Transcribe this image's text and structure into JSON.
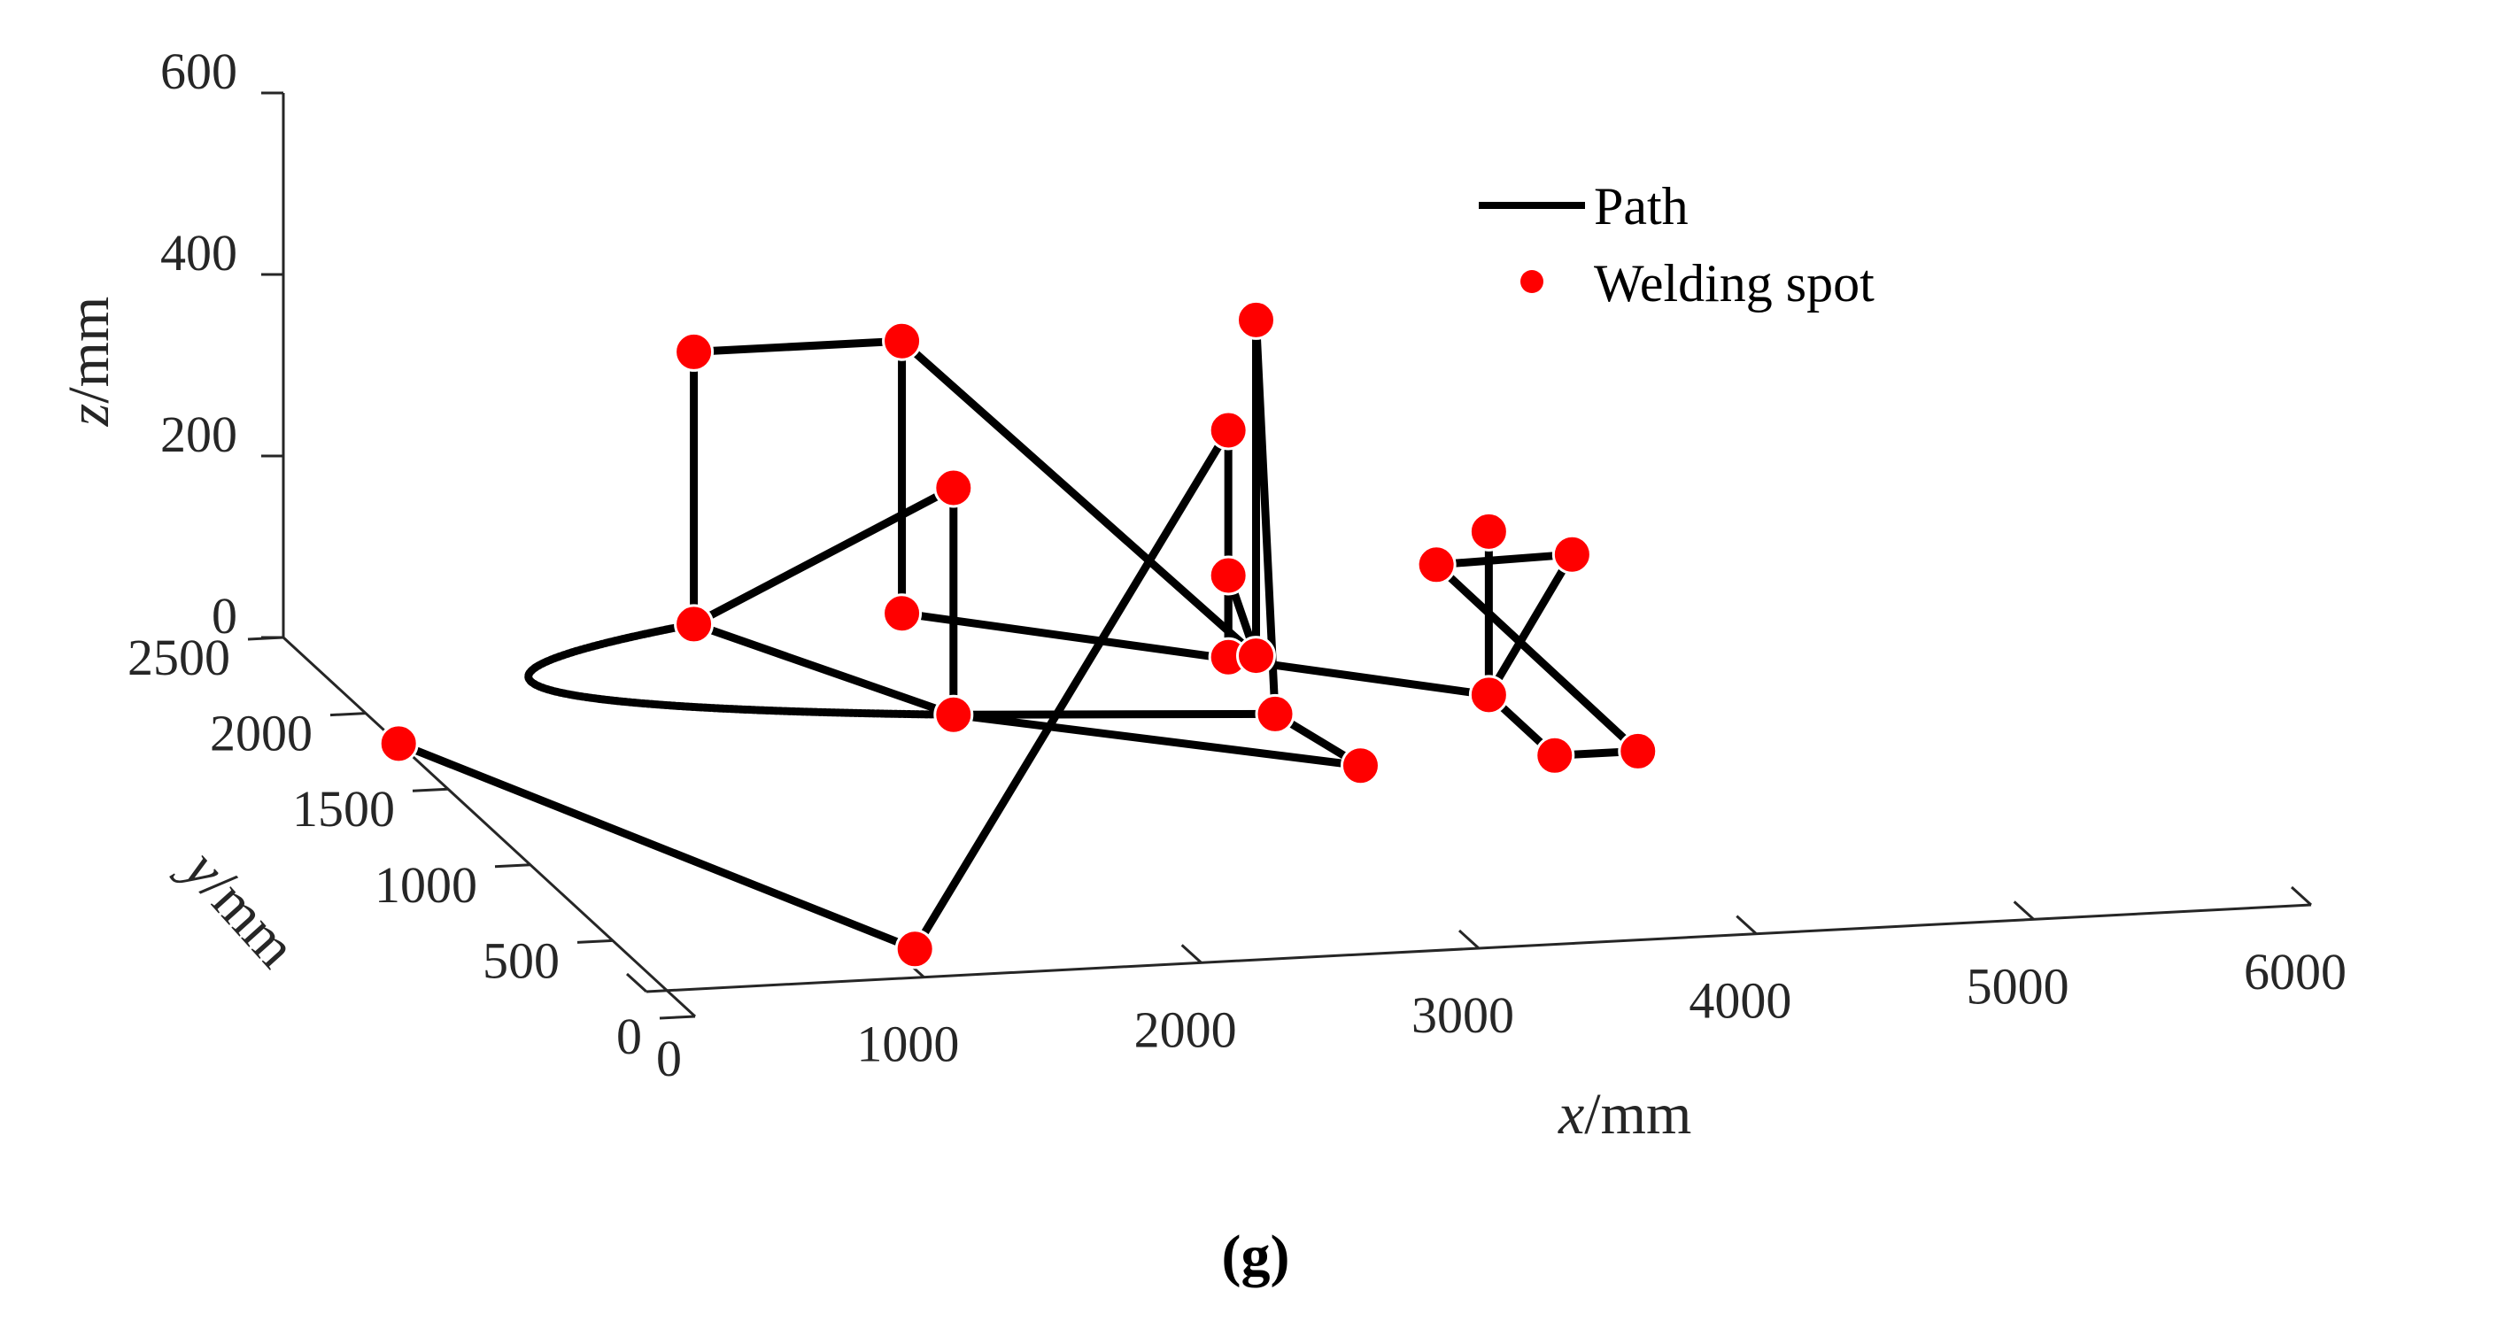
{
  "chart_data": {
    "type": "scatter",
    "subtype": "3d-path",
    "title": "",
    "xlabel": {
      "var": "x",
      "unit": "/mm"
    },
    "ylabel": {
      "var": "y",
      "unit": "/mm"
    },
    "zlabel": {
      "var": "z",
      "unit": "/mm"
    },
    "xlim": [
      0,
      6000
    ],
    "ylim": [
      0,
      2500
    ],
    "zlim": [
      0,
      600
    ],
    "x_ticks": [
      "0",
      "1000",
      "2000",
      "3000",
      "4000",
      "5000",
      "6000"
    ],
    "y_ticks": [
      "0",
      "500",
      "1000",
      "1500",
      "2000",
      "2500"
    ],
    "z_ticks": [
      "0",
      "200",
      "400",
      "600"
    ],
    "legend": {
      "placement": "top-right",
      "entries": [
        {
          "label": "Path",
          "marker": "line",
          "color": "#000000"
        },
        {
          "label": "Welding spot",
          "marker": "dot",
          "color": "#ff0000"
        }
      ]
    },
    "colors": {
      "path": "#000000",
      "spot": "#ff0000",
      "axis": "#262626"
    },
    "series": [
      {
        "name": "Welding spot",
        "points": [
          {
            "id": "P1",
            "x": 0,
            "y": 1800,
            "z": 0
          },
          {
            "id": "P2",
            "x": 1000,
            "y": 350,
            "z": 0
          },
          {
            "id": "P3",
            "x": 2000,
            "y": 1800,
            "z": 0
          },
          {
            "id": "P4",
            "x": 2000,
            "y": 1800,
            "z": 250
          },
          {
            "id": "P5",
            "x": 1450,
            "y": 2450,
            "z": 0
          },
          {
            "id": "P6",
            "x": 1450,
            "y": 2450,
            "z": 300
          },
          {
            "id": "P7",
            "x": 2200,
            "y": 2450,
            "z": 300
          },
          {
            "id": "P8",
            "x": 2200,
            "y": 2450,
            "z": 0
          },
          {
            "id": "P9",
            "x": 3050,
            "y": 1900,
            "z": 30
          },
          {
            "id": "P10",
            "x": 3050,
            "y": 1900,
            "z": 120
          },
          {
            "id": "P11",
            "x": 3050,
            "y": 1900,
            "z": 280
          },
          {
            "id": "P12",
            "x": 3150,
            "y": 1900,
            "z": 30
          },
          {
            "id": "P13",
            "x": 3150,
            "y": 1900,
            "z": 400
          },
          {
            "id": "P14",
            "x": 3100,
            "y": 1700,
            "z": 0
          },
          {
            "id": "P15",
            "x": 3200,
            "y": 1350,
            "z": 0
          },
          {
            "id": "P16",
            "x": 3900,
            "y": 1750,
            "z": 0
          },
          {
            "id": "P17",
            "x": 3900,
            "y": 1750,
            "z": 180
          },
          {
            "id": "P18",
            "x": 3800,
            "y": 1900,
            "z": 120
          },
          {
            "id": "P19",
            "x": 4200,
            "y": 1750,
            "z": 150
          },
          {
            "id": "P20",
            "x": 4200,
            "y": 1350,
            "z": 0
          },
          {
            "id": "P21",
            "x": 3900,
            "y": 1350,
            "z": 0
          }
        ]
      },
      {
        "name": "Path",
        "segments": [
          [
            "P1",
            "P2"
          ],
          [
            "P2",
            "P11"
          ],
          [
            "P11",
            "P9"
          ],
          [
            "P9",
            "P10"
          ],
          [
            "P10",
            "P12"
          ],
          [
            "P12",
            "P13"
          ],
          [
            "P13",
            "P14"
          ],
          [
            "P14",
            "P15"
          ],
          [
            "P15",
            "P3"
          ],
          [
            "P3",
            "P14"
          ],
          [
            "P3",
            "P4"
          ],
          [
            "P3",
            "P5"
          ],
          [
            "P5",
            "P4"
          ],
          [
            "P5",
            "P6"
          ],
          [
            "P6",
            "P7"
          ],
          [
            "P7",
            "P8"
          ],
          [
            "P7",
            "P12"
          ],
          [
            "P8",
            "P16"
          ],
          [
            "P16",
            "P17"
          ],
          [
            "P16",
            "P19"
          ],
          [
            "P19",
            "P18"
          ],
          [
            "P18",
            "P20"
          ],
          [
            "P20",
            "P21"
          ],
          [
            "P21",
            "P16"
          ]
        ],
        "arc": {
          "from": "P5",
          "through_x": 700,
          "through_y": 2100,
          "to": "P3",
          "z": 0
        }
      }
    ]
  },
  "caption": "(g)"
}
